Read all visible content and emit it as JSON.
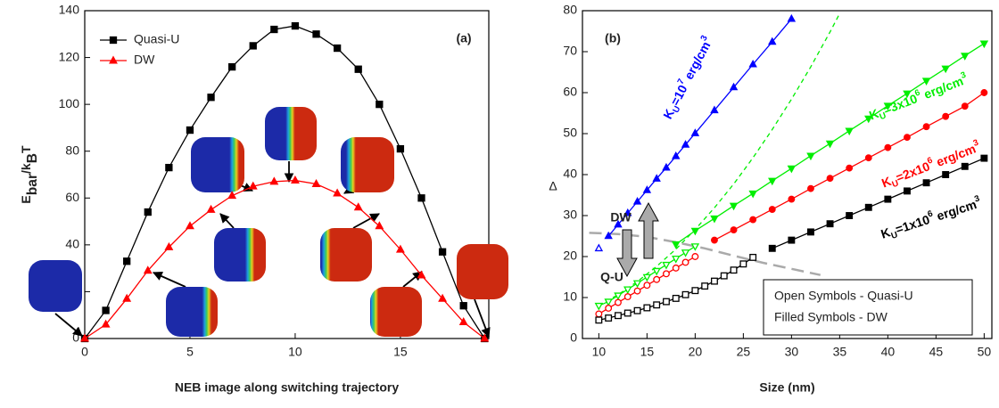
{
  "chart_data": [
    {
      "type": "line",
      "panel_label": "(a)",
      "xlabel": "NEB image along switching trajectory",
      "ylabel": [
        {
          "text": "E"
        },
        {
          "text": "bar",
          "sub": true
        },
        {
          "text": "/k"
        },
        {
          "text": "B",
          "sub": true
        },
        {
          "text": "T"
        }
      ],
      "x": [
        0,
        1,
        2,
        3,
        4,
        5,
        6,
        7,
        8,
        9,
        10,
        11,
        12,
        13,
        14,
        15,
        16,
        17,
        18,
        19
      ],
      "xlim": [
        0,
        19.2
      ],
      "xticks": [
        0,
        5,
        10,
        15
      ],
      "ylim": [
        0,
        140
      ],
      "yticks": [
        0,
        20,
        40,
        60,
        80,
        100,
        120,
        140
      ],
      "legend": "upper left",
      "series": [
        {
          "name": "Quasi-U",
          "color": "#000000",
          "marker": "square",
          "filled": true,
          "values": [
            0,
            12,
            33,
            54,
            73,
            89,
            103,
            116,
            125,
            132,
            133.5,
            130,
            124,
            115,
            100,
            81,
            60,
            37,
            14,
            0
          ]
        },
        {
          "name": "DW",
          "color": "#ff0000",
          "marker": "triangle-up",
          "filled": true,
          "values": [
            0,
            6,
            17,
            29,
            39,
            48,
            55,
            61,
            65,
            67,
            67.5,
            66,
            62,
            56,
            48,
            38,
            27,
            17,
            7,
            0
          ]
        }
      ]
    },
    {
      "type": "line",
      "panel_label": "(b)",
      "xlabel": "Size (nm)",
      "ylabel": "Δ",
      "xlim": [
        8.3,
        50.8
      ],
      "xticks": [
        10,
        15,
        20,
        25,
        30,
        35,
        40,
        45,
        50
      ],
      "ylim": [
        0,
        80
      ],
      "yticks": [
        0,
        10,
        20,
        30,
        40,
        50,
        60,
        70,
        80
      ],
      "series": [
        {
          "color": "#00ee00",
          "style": "dashed",
          "x": [
            10,
            12,
            14,
            16,
            18,
            20,
            22,
            24,
            26,
            28,
            30,
            32,
            34,
            35
          ],
          "values": [
            8,
            10.7,
            13.9,
            17.6,
            21.8,
            26.6,
            31.9,
            37.7,
            44.1,
            51.0,
            58.4,
            66.3,
            74.8,
            79.3
          ]
        },
        {
          "color": "#aaaaaa",
          "style": "dashed",
          "x": [
            9,
            12,
            15,
            18,
            21,
            24,
            27,
            30,
            33
          ],
          "values": [
            25.8,
            25.5,
            24.8,
            23.5,
            22,
            20.2,
            18.5,
            17,
            15.5
          ]
        },
        {
          "color": "#0000ff",
          "marker": "triangle-up",
          "filled": false,
          "x": [
            10
          ],
          "values": [
            22
          ]
        },
        {
          "color": "#0000ff",
          "marker": "triangle-up",
          "filled": true,
          "label": [
            {
              "text": "K"
            },
            {
              "text": "U",
              "sub": true
            },
            {
              "text": "=10"
            },
            {
              "text": "7",
              "sup": true
            },
            {
              "text": " erg/cm"
            },
            {
              "text": "3",
              "sup": true
            }
          ],
          "x": [
            11,
            12,
            13,
            14,
            15,
            16,
            17,
            18,
            19,
            20,
            22,
            24,
            26,
            28,
            30
          ],
          "values": [
            25,
            27.8,
            30.6,
            33.4,
            36.2,
            39,
            41.7,
            44.5,
            47.3,
            50.1,
            55.7,
            61.3,
            66.9,
            72.4,
            78
          ]
        },
        {
          "color": "#00ee00",
          "marker": "triangle-down",
          "filled": false,
          "x": [
            10,
            11,
            12,
            13,
            14,
            15,
            16,
            17,
            18,
            19,
            20
          ],
          "values": [
            8,
            9,
            10.5,
            12,
            13.5,
            15,
            16.5,
            18,
            19.5,
            21,
            22.5
          ]
        },
        {
          "color": "#00ee00",
          "marker": "triangle-down",
          "filled": true,
          "label": [
            {
              "text": "K"
            },
            {
              "text": "U",
              "sub": true
            },
            {
              "text": "=3x10"
            },
            {
              "text": "6",
              "sup": true
            },
            {
              "text": " erg/cm"
            },
            {
              "text": "3",
              "sup": true
            }
          ],
          "x": [
            18,
            20,
            22,
            24,
            26,
            28,
            30,
            32,
            34,
            36,
            38,
            40,
            42,
            44,
            46,
            48,
            50
          ],
          "values": [
            23,
            26.3,
            29.3,
            32.4,
            35.4,
            38.5,
            41.5,
            44.6,
            47.6,
            50.7,
            53.7,
            56.8,
            59.8,
            62.9,
            65.9,
            69,
            72
          ]
        },
        {
          "color": "#ff0000",
          "marker": "circle",
          "filled": false,
          "x": [
            10,
            11,
            12,
            13,
            14,
            15,
            16,
            17,
            18,
            19,
            20
          ],
          "values": [
            6,
            7.4,
            8.8,
            10.2,
            11.6,
            13,
            14.4,
            15.8,
            17.2,
            18.6,
            20
          ]
        },
        {
          "color": "#ff0000",
          "marker": "circle",
          "filled": true,
          "label": [
            {
              "text": "K"
            },
            {
              "text": "U",
              "sub": true
            },
            {
              "text": "=2x10"
            },
            {
              "text": "6",
              "sup": true
            },
            {
              "text": " erg/cm"
            },
            {
              "text": "3",
              "sup": true
            }
          ],
          "x": [
            22,
            24,
            26,
            28,
            30,
            32,
            34,
            36,
            38,
            40,
            42,
            44,
            46,
            48,
            50
          ],
          "values": [
            24,
            26.5,
            29,
            31.5,
            34,
            36.6,
            39.1,
            41.6,
            44.1,
            46.6,
            49.1,
            51.7,
            54.2,
            56.7,
            60
          ]
        },
        {
          "color": "#000000",
          "marker": "square",
          "filled": false,
          "x": [
            10,
            11,
            12,
            13,
            14,
            15,
            16,
            17,
            18,
            19,
            20,
            21,
            22,
            23,
            24,
            25,
            26
          ],
          "values": [
            4.5,
            5,
            5.6,
            6.2,
            6.8,
            7.5,
            8.2,
            9,
            9.8,
            10.7,
            11.7,
            12.8,
            14,
            15.3,
            16.7,
            18.2,
            19.8
          ]
        },
        {
          "color": "#000000",
          "marker": "square",
          "filled": true,
          "label": [
            {
              "text": "K"
            },
            {
              "text": "U",
              "sub": true
            },
            {
              "text": "=1x10"
            },
            {
              "text": "6",
              "sup": true
            },
            {
              "text": " erg/cm"
            },
            {
              "text": "3",
              "sup": true
            }
          ],
          "x": [
            28,
            30,
            32,
            34,
            36,
            38,
            40,
            42,
            44,
            46,
            48,
            50
          ],
          "values": [
            22,
            24,
            26,
            28,
            30,
            32,
            34,
            36,
            38,
            40,
            42,
            44
          ]
        }
      ],
      "annotations": [
        "DW",
        "Q-U"
      ],
      "note": [
        "Open Symbols - Quasi-U",
        "Filled Symbols - DW"
      ]
    }
  ]
}
